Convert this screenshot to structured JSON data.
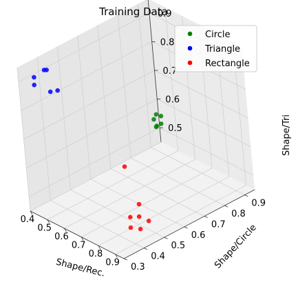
{
  "chart_data": {
    "type": "scatter",
    "projection": "3d",
    "title": "Training Data",
    "xlabel": "Shape/Rec.",
    "ylabel": "Shape/Circle",
    "zlabel": "Shape/Tri",
    "xlim": [
      0.4,
      0.95
    ],
    "ylim": [
      0.3,
      0.95
    ],
    "zlim": [
      0.45,
      0.95
    ],
    "xticks": [
      "0.4",
      "0.5",
      "0.6",
      "0.7",
      "0.8",
      "0.9"
    ],
    "yticks": [
      "0.3",
      "0.4",
      "0.5",
      "0.6",
      "0.7",
      "0.8",
      "0.9"
    ],
    "zticks": [
      "0.5",
      "0.6",
      "0.7",
      "0.8",
      "0.9"
    ],
    "grid": true,
    "legend_position": "top-right",
    "series": [
      {
        "name": "Circle",
        "color": "#008000",
        "points": [
          {
            "x": 0.45,
            "y": 0.9,
            "z": 0.58
          },
          {
            "x": 0.47,
            "y": 0.88,
            "z": 0.55
          },
          {
            "x": 0.45,
            "y": 0.92,
            "z": 0.54
          },
          {
            "x": 0.5,
            "y": 0.86,
            "z": 0.57
          },
          {
            "x": 0.44,
            "y": 0.93,
            "z": 0.56
          },
          {
            "x": 0.42,
            "y": 0.91,
            "z": 0.55
          }
        ]
      },
      {
        "name": "Triangle",
        "color": "#0000ff",
        "points": [
          {
            "x": 0.45,
            "y": 0.4,
            "z": 0.92
          },
          {
            "x": 0.42,
            "y": 0.36,
            "z": 0.9
          },
          {
            "x": 0.48,
            "y": 0.42,
            "z": 0.85
          },
          {
            "x": 0.43,
            "y": 0.35,
            "z": 0.88
          },
          {
            "x": 0.46,
            "y": 0.38,
            "z": 0.93
          },
          {
            "x": 0.5,
            "y": 0.37,
            "z": 0.87
          }
        ]
      },
      {
        "name": "Rectangle",
        "color": "#ff0000",
        "points": [
          {
            "x": 0.88,
            "y": 0.4,
            "z": 0.5
          },
          {
            "x": 0.9,
            "y": 0.43,
            "z": 0.49
          },
          {
            "x": 0.86,
            "y": 0.46,
            "z": 0.51
          },
          {
            "x": 0.93,
            "y": 0.45,
            "z": 0.52
          },
          {
            "x": 0.84,
            "y": 0.48,
            "z": 0.54
          },
          {
            "x": 0.87,
            "y": 0.41,
            "z": 0.53
          },
          {
            "x": 0.72,
            "y": 0.52,
            "z": 0.62
          }
        ]
      }
    ]
  }
}
